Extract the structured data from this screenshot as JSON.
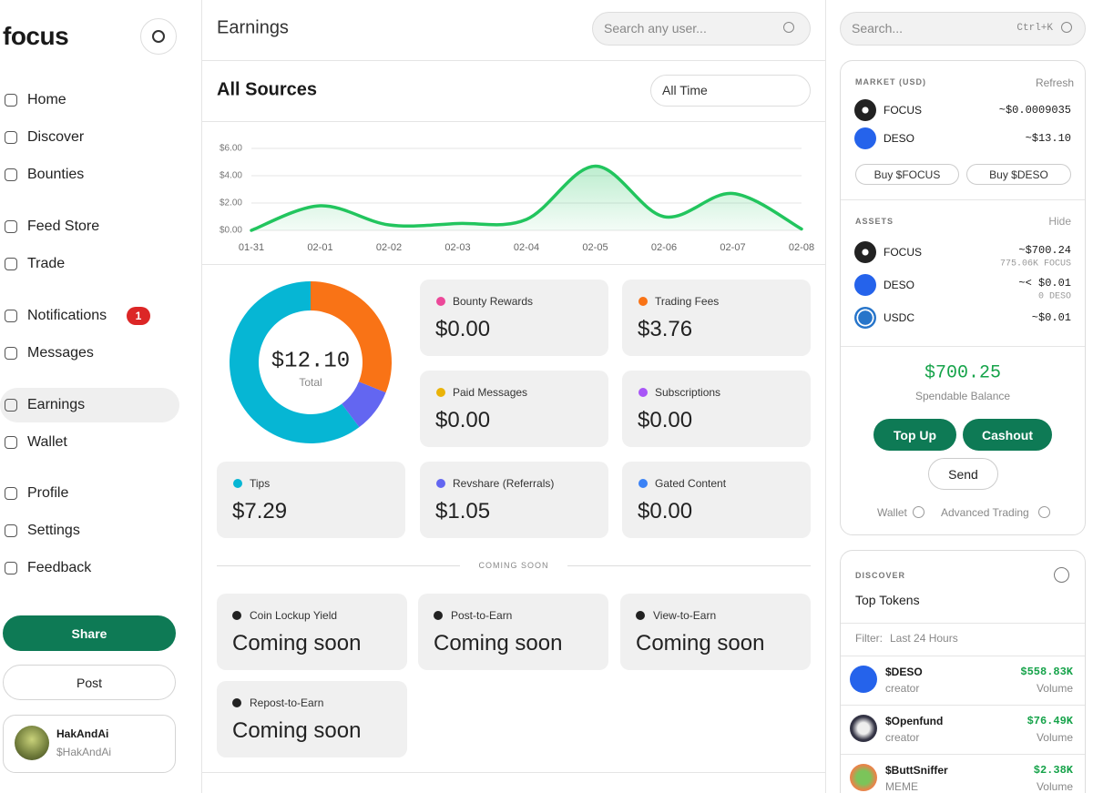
{
  "sidebar": {
    "logo": "focus",
    "nav": [
      "Home",
      "Discover",
      "Bounties",
      "Feed Store",
      "Trade",
      "Notifications",
      "Messages",
      "Earnings",
      "Wallet",
      "Profile",
      "Settings",
      "Feedback"
    ],
    "notification_count": 1,
    "share": "Share",
    "post": "Post",
    "user": {
      "name": "HakAndAi",
      "handle": "$HakAndAi"
    }
  },
  "header": {
    "title": "Earnings",
    "search_placeholder": "Search any user..."
  },
  "sources": {
    "title": "All Sources",
    "filter": "All Time"
  },
  "chart_data": [
    {
      "type": "line",
      "categories": [
        "01-31",
        "02-01",
        "02-02",
        "02-03",
        "02-04",
        "02-05",
        "02-06",
        "02-07",
        "02-08"
      ],
      "values": [
        0.0,
        1.8,
        0.4,
        0.5,
        0.8,
        4.7,
        1.0,
        2.7,
        0.1
      ],
      "color": "#22c55e",
      "ylim": [
        0,
        6
      ],
      "yticks": [
        {
          "value": 0,
          "label": "$0.00"
        },
        {
          "value": 2,
          "label": "$2.00"
        },
        {
          "value": 4,
          "label": "$4.00"
        },
        {
          "value": 6,
          "label": "$6.00"
        }
      ],
      "grid": true
    },
    {
      "type": "donut",
      "categories": [
        "Bounty Rewards",
        "Trading Fees",
        "Paid Messages",
        "Subscriptions",
        "Tips",
        "Revshare (Referrals)",
        "Gated Content"
      ],
      "values": [
        0,
        3.76,
        0,
        0,
        7.29,
        1.05,
        0
      ],
      "value_labels": [
        "$0.00",
        "$3.76",
        "$0.00",
        "$0.00",
        "$7.29",
        "$1.05",
        "$0.00"
      ],
      "colors": [
        "#ec4899",
        "#f97316",
        "#eab308",
        "#a855f7",
        "#06b6d4",
        "#6366f1",
        "#3b82f6"
      ],
      "total": {
        "value": 12.1,
        "label": "$12.10"
      },
      "total_caption": "Total"
    }
  ],
  "coming_soon": {
    "label": "COMING SOON",
    "items": [
      {
        "name": "Coin Lockup Yield",
        "status": "Coming soon"
      },
      {
        "name": "Post-to-Earn",
        "status": "Coming soon"
      },
      {
        "name": "View-to-Earn",
        "status": "Coming soon"
      },
      {
        "name": "Repost-to-Earn",
        "status": "Coming soon"
      }
    ]
  },
  "right": {
    "search_placeholder": "Search...",
    "shortcut": "Ctrl+K",
    "market": {
      "title": "MARKET (USD)",
      "refresh": "Refresh",
      "rows": [
        {
          "name": "FOCUS",
          "price": "~$0.0009035"
        },
        {
          "name": "DESO",
          "price": "~$13.10"
        }
      ],
      "buttons": [
        "Buy $FOCUS",
        "Buy $DESO"
      ]
    },
    "assets": {
      "title": "ASSETS",
      "hide": "Hide",
      "rows": [
        {
          "name": "FOCUS",
          "value": "~$700.24",
          "amount": "775.06K FOCUS"
        },
        {
          "name": "DESO",
          "value": "~< $0.01",
          "amount": "0 DESO"
        },
        {
          "name": "USDC",
          "value": "~$0.01"
        }
      ]
    },
    "balance": {
      "amount": "$700.25",
      "label": "Spendable Balance",
      "top_up": "Top Up",
      "cashout": "Cashout",
      "send": "Send",
      "links": [
        "Wallet",
        "Advanced Trading"
      ]
    },
    "discover": {
      "title": "DISCOVER",
      "selector": "Top Tokens",
      "filter_label": "Filter:",
      "filter": "Last 24 Hours",
      "tokens": [
        {
          "name": "$DESO",
          "type": "creator",
          "volume": "$558.83K",
          "volume_label": "Volume"
        },
        {
          "name": "$Openfund",
          "type": "creator",
          "volume": "$76.49K",
          "volume_label": "Volume"
        },
        {
          "name": "$ButtSniffer",
          "type": "MEME",
          "volume": "$2.38K",
          "volume_label": "Volume"
        }
      ]
    }
  }
}
